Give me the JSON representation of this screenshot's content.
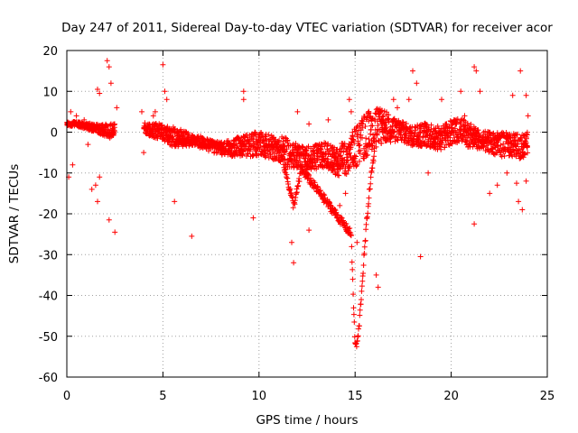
{
  "chart_data": {
    "type": "scatter",
    "title": "Day 247 of 2011, Sidereal Day-to-day VTEC variation (SDTVAR) for receiver acor",
    "xlabel": "GPS time / hours",
    "ylabel": "SDTVAR / TECUs",
    "xlim": [
      0,
      25
    ],
    "ylim": [
      -60,
      20
    ],
    "xticks": [
      0,
      5,
      10,
      15,
      20,
      25
    ],
    "yticks": [
      -60,
      -50,
      -40,
      -30,
      -20,
      -10,
      0,
      10,
      20
    ],
    "grid": true,
    "marker": "+",
    "color": "#ff0000",
    "series": [
      {
        "name": "SDTVAR",
        "trend_x": [
          0.0,
          0.5,
          1.0,
          1.5,
          2.0,
          2.5,
          3.0,
          3.5,
          4.0,
          4.5,
          5.0,
          5.5,
          6.0,
          6.5,
          7.0,
          7.5,
          8.0,
          8.5,
          9.0,
          9.5,
          10.0,
          10.5,
          11.0,
          11.5,
          12.0,
          12.5,
          13.0,
          13.5,
          14.0,
          14.5,
          15.0,
          15.5,
          16.0,
          16.5,
          17.0,
          17.5,
          18.0,
          18.5,
          19.0,
          19.5,
          20.0,
          20.5,
          21.0,
          21.5,
          22.0,
          22.5,
          23.0,
          23.5,
          24.0
        ],
        "trend_y": [
          2,
          2,
          1.5,
          1,
          0.5,
          0,
          null,
          null,
          1,
          0.5,
          0,
          -1,
          -1.5,
          -2,
          -2.5,
          -3.5,
          -4,
          -4,
          -3.5,
          -3,
          -3,
          -3.5,
          -4,
          -5,
          -6,
          -6.5,
          -6,
          -5.5,
          -7,
          -6.5,
          -4,
          -1,
          1,
          1.5,
          0.5,
          0,
          -1,
          -0.5,
          -1,
          -1.5,
          0,
          0.5,
          -1,
          -2,
          -2.5,
          -3,
          -3,
          -3.5,
          -3
        ],
        "band": [
          0.5,
          0.6,
          0.8,
          1.0,
          1.5,
          2.0,
          0,
          0,
          1.5,
          1.8,
          2.0,
          2.5,
          2.0,
          1.5,
          1.5,
          1.5,
          1.5,
          2.0,
          2.5,
          3.0,
          3.0,
          3.0,
          3.0,
          3.5,
          3.0,
          3.0,
          3.0,
          3.0,
          3.5,
          4.5,
          5.0,
          5.5,
          5.0,
          4.0,
          3.0,
          2.5,
          2.5,
          3.0,
          3.0,
          3.0,
          3.0,
          3.0,
          3.0,
          2.5,
          2.5,
          3.0,
          3.0,
          3.0,
          3.0
        ],
        "descent_x": [
          11.2,
          11.5,
          11.8,
          12.0,
          12.2,
          14.8,
          14.9,
          15.0,
          15.1,
          15.2,
          15.4,
          15.6,
          15.8,
          16.0
        ],
        "descent_y": [
          -6,
          -12,
          -18,
          -14,
          -9,
          -25,
          -40,
          -52,
          -52,
          -48,
          -35,
          -22,
          -12,
          -5
        ],
        "outliers": [
          [
            0.1,
            -11
          ],
          [
            0.2,
            5
          ],
          [
            0.3,
            -8
          ],
          [
            0.5,
            4
          ],
          [
            0.9,
            3
          ],
          [
            1.1,
            -3
          ],
          [
            1.3,
            -14
          ],
          [
            1.5,
            -13
          ],
          [
            1.6,
            -17
          ],
          [
            1.7,
            -11
          ],
          [
            1.6,
            10.5
          ],
          [
            1.7,
            9.5
          ],
          [
            2.1,
            17.5
          ],
          [
            2.2,
            16
          ],
          [
            2.3,
            12
          ],
          [
            2.2,
            -21.5
          ],
          [
            2.5,
            -24.5
          ],
          [
            2.6,
            6
          ],
          [
            3.9,
            5
          ],
          [
            4.0,
            -5
          ],
          [
            4.5,
            4
          ],
          [
            4.6,
            5
          ],
          [
            5.0,
            16.5
          ],
          [
            5.1,
            10
          ],
          [
            5.2,
            8
          ],
          [
            5.6,
            -17
          ],
          [
            6.5,
            -25.5
          ],
          [
            9.2,
            10
          ],
          [
            9.2,
            8
          ],
          [
            9.7,
            -21
          ],
          [
            10.7,
            -3
          ],
          [
            11.8,
            -32
          ],
          [
            11.7,
            -27
          ],
          [
            12.0,
            5
          ],
          [
            12.6,
            -24
          ],
          [
            12.6,
            2
          ],
          [
            13.6,
            3
          ],
          [
            13.8,
            -8
          ],
          [
            14.2,
            -18
          ],
          [
            14.5,
            -15
          ],
          [
            14.7,
            8
          ],
          [
            14.8,
            5
          ],
          [
            15.1,
            -27
          ],
          [
            16.1,
            -35
          ],
          [
            16.2,
            -38
          ],
          [
            17.0,
            8
          ],
          [
            17.2,
            6
          ],
          [
            17.8,
            8
          ],
          [
            18.0,
            15
          ],
          [
            18.2,
            12
          ],
          [
            18.4,
            -30.5
          ],
          [
            18.8,
            -10
          ],
          [
            19.5,
            8
          ],
          [
            20.5,
            10
          ],
          [
            20.7,
            4
          ],
          [
            21.2,
            16
          ],
          [
            21.3,
            15
          ],
          [
            21.2,
            -22.5
          ],
          [
            21.5,
            10
          ],
          [
            22.0,
            -15
          ],
          [
            22.4,
            -13
          ],
          [
            22.9,
            -10
          ],
          [
            23.2,
            9
          ],
          [
            23.6,
            15
          ],
          [
            23.9,
            9
          ],
          [
            23.9,
            -12
          ],
          [
            23.5,
            -17
          ],
          [
            23.7,
            -19
          ],
          [
            23.4,
            -12.5
          ],
          [
            24.0,
            4
          ]
        ]
      }
    ]
  }
}
